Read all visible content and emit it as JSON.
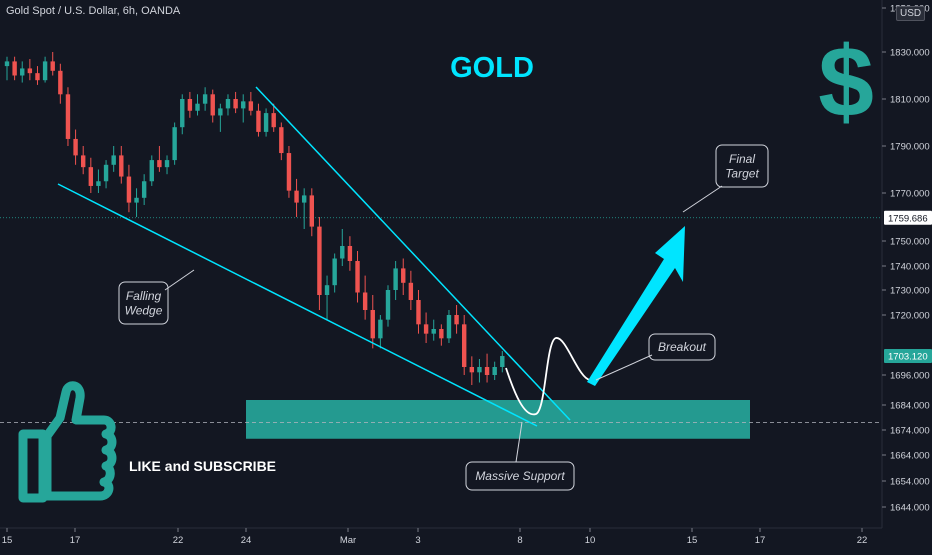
{
  "header": {
    "symbol_line": "Gold Spot / U.S. Dollar, 6h, OANDA",
    "currency": "USD"
  },
  "colors": {
    "background": "#131722",
    "up": "#26a69a",
    "down": "#ef5350",
    "accent": "#00e5ff",
    "support_zone": "#26a69a",
    "dollar": "#26a69a"
  },
  "annotations": {
    "title": "GOLD",
    "dollar_sign": "$",
    "falling_wedge": [
      "Falling",
      "Wedge"
    ],
    "final_target": [
      "Final",
      "Target"
    ],
    "breakout": "Breakout",
    "massive_support": "Massive Support",
    "like_subscribe": "LIKE and SUBSCRIBE",
    "thumbs_up_icon": "thumbs-up-icon"
  },
  "chart_data": {
    "type": "candlestick",
    "yaxis": {
      "ticks": [
        1850,
        1830,
        1810,
        1790,
        1770,
        1750,
        1740,
        1730,
        1720,
        1696,
        1684,
        1674,
        1664,
        1654,
        1644
      ],
      "tick_labels": [
        "1850.000",
        "1830.000",
        "1810.000",
        "1790.000",
        "1770.000",
        "1750.000",
        "1740.000",
        "1730.000",
        "1720.000",
        "1696.000",
        "1684.000",
        "1674.000",
        "1664.000",
        "1654.000",
        "1644.000"
      ],
      "price_label_high": "1759.686",
      "price_label_current": "1703.120",
      "horizontal_level": 1759.686,
      "support_level": 1677
    },
    "xaxis": {
      "ticks": [
        "15",
        "17",
        "22",
        "24",
        "Mar",
        "3",
        "8",
        "10",
        "15",
        "17",
        "22"
      ]
    },
    "candles": [
      {
        "o": 1824,
        "h": 1828,
        "l": 1818,
        "c": 1826
      },
      {
        "o": 1826,
        "h": 1828,
        "l": 1818,
        "c": 1820
      },
      {
        "o": 1820,
        "h": 1826,
        "l": 1817,
        "c": 1823
      },
      {
        "o": 1823,
        "h": 1827,
        "l": 1818,
        "c": 1821
      },
      {
        "o": 1821,
        "h": 1824,
        "l": 1816,
        "c": 1818
      },
      {
        "o": 1818,
        "h": 1828,
        "l": 1817,
        "c": 1826
      },
      {
        "o": 1826,
        "h": 1830,
        "l": 1820,
        "c": 1822
      },
      {
        "o": 1822,
        "h": 1825,
        "l": 1808,
        "c": 1812
      },
      {
        "o": 1812,
        "h": 1815,
        "l": 1790,
        "c": 1793
      },
      {
        "o": 1793,
        "h": 1797,
        "l": 1782,
        "c": 1786
      },
      {
        "o": 1786,
        "h": 1790,
        "l": 1778,
        "c": 1781
      },
      {
        "o": 1781,
        "h": 1785,
        "l": 1770,
        "c": 1773
      },
      {
        "o": 1773,
        "h": 1780,
        "l": 1770,
        "c": 1775
      },
      {
        "o": 1775,
        "h": 1784,
        "l": 1772,
        "c": 1782
      },
      {
        "o": 1782,
        "h": 1790,
        "l": 1779,
        "c": 1786
      },
      {
        "o": 1786,
        "h": 1790,
        "l": 1774,
        "c": 1777
      },
      {
        "o": 1777,
        "h": 1782,
        "l": 1762,
        "c": 1766
      },
      {
        "o": 1766,
        "h": 1772,
        "l": 1760,
        "c": 1768
      },
      {
        "o": 1768,
        "h": 1778,
        "l": 1765,
        "c": 1775
      },
      {
        "o": 1775,
        "h": 1786,
        "l": 1773,
        "c": 1784
      },
      {
        "o": 1784,
        "h": 1790,
        "l": 1779,
        "c": 1781
      },
      {
        "o": 1781,
        "h": 1786,
        "l": 1778,
        "c": 1784
      },
      {
        "o": 1784,
        "h": 1800,
        "l": 1782,
        "c": 1798
      },
      {
        "o": 1798,
        "h": 1812,
        "l": 1795,
        "c": 1810
      },
      {
        "o": 1810,
        "h": 1813,
        "l": 1802,
        "c": 1805
      },
      {
        "o": 1805,
        "h": 1812,
        "l": 1803,
        "c": 1808
      },
      {
        "o": 1808,
        "h": 1815,
        "l": 1805,
        "c": 1812
      },
      {
        "o": 1812,
        "h": 1814,
        "l": 1800,
        "c": 1803
      },
      {
        "o": 1803,
        "h": 1808,
        "l": 1796,
        "c": 1806
      },
      {
        "o": 1806,
        "h": 1812,
        "l": 1803,
        "c": 1810
      },
      {
        "o": 1810,
        "h": 1813,
        "l": 1804,
        "c": 1806
      },
      {
        "o": 1806,
        "h": 1812,
        "l": 1800,
        "c": 1809
      },
      {
        "o": 1809,
        "h": 1813,
        "l": 1803,
        "c": 1805
      },
      {
        "o": 1805,
        "h": 1808,
        "l": 1794,
        "c": 1796
      },
      {
        "o": 1796,
        "h": 1806,
        "l": 1794,
        "c": 1804
      },
      {
        "o": 1804,
        "h": 1808,
        "l": 1796,
        "c": 1798
      },
      {
        "o": 1798,
        "h": 1800,
        "l": 1784,
        "c": 1787
      },
      {
        "o": 1787,
        "h": 1790,
        "l": 1768,
        "c": 1771
      },
      {
        "o": 1771,
        "h": 1776,
        "l": 1760,
        "c": 1766
      },
      {
        "o": 1766,
        "h": 1772,
        "l": 1755,
        "c": 1769
      },
      {
        "o": 1769,
        "h": 1772,
        "l": 1752,
        "c": 1756
      },
      {
        "o": 1756,
        "h": 1760,
        "l": 1722,
        "c": 1728
      },
      {
        "o": 1728,
        "h": 1736,
        "l": 1718,
        "c": 1732
      },
      {
        "o": 1732,
        "h": 1745,
        "l": 1729,
        "c": 1743
      },
      {
        "o": 1743,
        "h": 1755,
        "l": 1740,
        "c": 1748
      },
      {
        "o": 1748,
        "h": 1752,
        "l": 1738,
        "c": 1742
      },
      {
        "o": 1742,
        "h": 1746,
        "l": 1725,
        "c": 1729
      },
      {
        "o": 1729,
        "h": 1736,
        "l": 1718,
        "c": 1722
      },
      {
        "o": 1722,
        "h": 1728,
        "l": 1706,
        "c": 1710
      },
      {
        "o": 1710,
        "h": 1720,
        "l": 1706,
        "c": 1718
      },
      {
        "o": 1718,
        "h": 1732,
        "l": 1715,
        "c": 1730
      },
      {
        "o": 1730,
        "h": 1742,
        "l": 1726,
        "c": 1739
      },
      {
        "o": 1739,
        "h": 1743,
        "l": 1728,
        "c": 1733
      },
      {
        "o": 1733,
        "h": 1738,
        "l": 1722,
        "c": 1726
      },
      {
        "o": 1726,
        "h": 1730,
        "l": 1712,
        "c": 1716
      },
      {
        "o": 1716,
        "h": 1721,
        "l": 1708,
        "c": 1712
      },
      {
        "o": 1712,
        "h": 1718,
        "l": 1709,
        "c": 1714
      },
      {
        "o": 1714,
        "h": 1716,
        "l": 1707,
        "c": 1710
      },
      {
        "o": 1710,
        "h": 1722,
        "l": 1708,
        "c": 1720
      },
      {
        "o": 1720,
        "h": 1724,
        "l": 1712,
        "c": 1716
      },
      {
        "o": 1716,
        "h": 1720,
        "l": 1696,
        "c": 1699
      },
      {
        "o": 1699,
        "h": 1703,
        "l": 1692,
        "c": 1697
      },
      {
        "o": 1697,
        "h": 1702,
        "l": 1693,
        "c": 1699
      },
      {
        "o": 1699,
        "h": 1704,
        "l": 1693,
        "c": 1696
      },
      {
        "o": 1696,
        "h": 1701,
        "l": 1694,
        "c": 1699
      },
      {
        "o": 1699,
        "h": 1705,
        "l": 1697,
        "c": 1703.12
      }
    ]
  }
}
